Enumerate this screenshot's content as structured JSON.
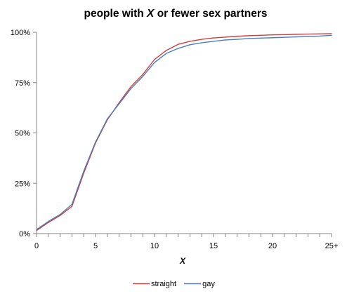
{
  "chart_data": {
    "type": "line",
    "title_parts": [
      {
        "text": "people with ",
        "italic": false
      },
      {
        "text": "X",
        "italic": true
      },
      {
        "text": " or fewer sex partners",
        "italic": false
      }
    ],
    "xlabel": "X",
    "ylabel": "",
    "x": [
      0,
      1,
      2,
      3,
      4,
      5,
      6,
      7,
      8,
      9,
      10,
      11,
      12,
      13,
      14,
      15,
      16,
      17,
      18,
      19,
      20,
      21,
      22,
      23,
      24,
      25
    ],
    "x_tick_values": [
      0,
      5,
      10,
      15,
      20,
      25
    ],
    "x_tick_labels": [
      "0",
      "5",
      "10",
      "15",
      "20",
      "25+"
    ],
    "xlim": [
      0,
      25
    ],
    "y_tick_values": [
      0,
      25,
      50,
      75,
      100
    ],
    "y_tick_labels": [
      "0%",
      "25%",
      "50%",
      "75%",
      "100%"
    ],
    "ylim": [
      0,
      100
    ],
    "grid": false,
    "legend_position": "bottom",
    "series": [
      {
        "name": "straight",
        "color": "#d43d3d",
        "values": [
          1.5,
          5.5,
          9,
          13.5,
          30,
          45,
          56.5,
          65,
          73,
          79,
          86.5,
          91,
          94,
          95.5,
          96.5,
          97.2,
          97.6,
          98,
          98.3,
          98.5,
          98.7,
          98.8,
          99,
          99.1,
          99.2,
          99.3
        ]
      },
      {
        "name": "gay",
        "color": "#4a7ebb",
        "values": [
          2,
          6,
          9.5,
          14.5,
          31,
          45.5,
          57,
          64.5,
          72,
          78,
          85,
          89.5,
          92,
          93.8,
          94.8,
          95.5,
          96.2,
          96.5,
          96.9,
          97.1,
          97.3,
          97.5,
          97.7,
          97.9,
          98.1,
          98.5
        ]
      }
    ]
  }
}
